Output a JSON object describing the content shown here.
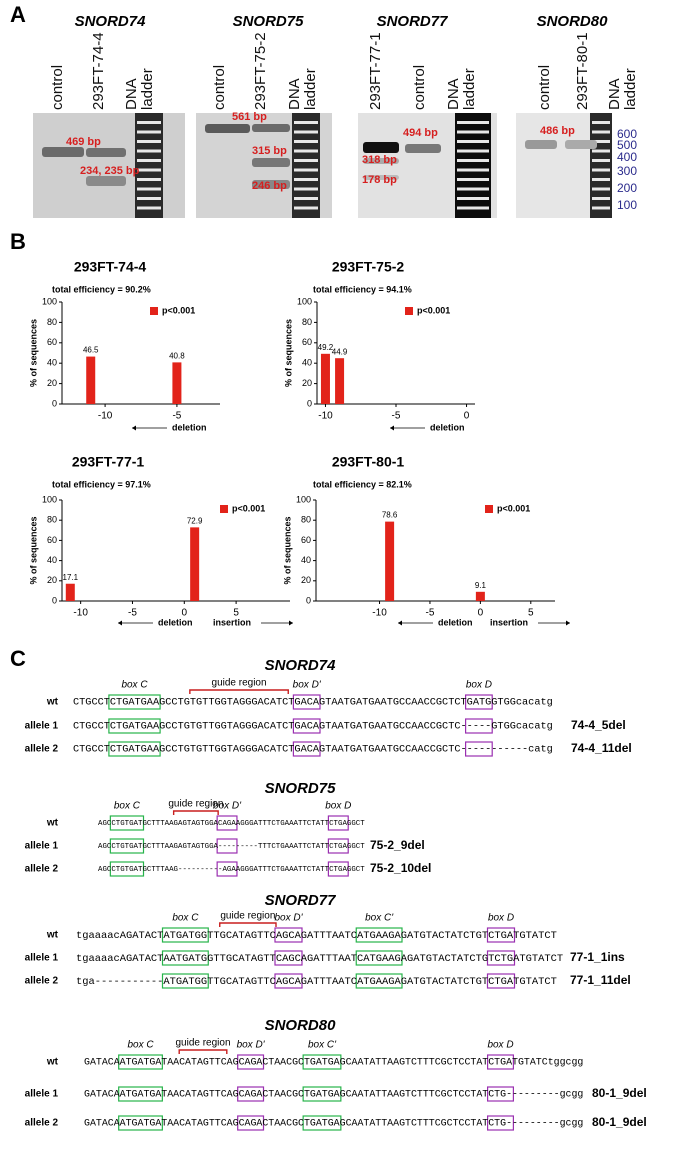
{
  "panel_a": {
    "label": "A",
    "gels": [
      {
        "title": "SNORD74",
        "lanes": [
          "control",
          "293FT-74-4",
          "DNA ladder"
        ],
        "bands": [
          "469 bp",
          "234, 235 bp"
        ]
      },
      {
        "title": "SNORD75",
        "lanes": [
          "control",
          "293FT-75-2",
          "DNA ladder"
        ],
        "bands": [
          "561 bp",
          "315 bp",
          "246 bp"
        ]
      },
      {
        "title": "SNORD77",
        "lanes": [
          "293FT-77-1",
          "control",
          "DNA ladder"
        ],
        "bands": [
          "494 bp",
          "318 bp",
          "178 bp"
        ]
      },
      {
        "title": "SNORD80",
        "lanes": [
          "control",
          "293FT-80-1",
          "DNA ladder"
        ],
        "bands": [
          "486 bp"
        ]
      }
    ],
    "ladder_labels": [
      "600",
      "500",
      "400",
      "300",
      "200",
      "100"
    ]
  },
  "panel_b": {
    "label": "B"
  },
  "chart_data": [
    {
      "type": "bar",
      "title": "293FT-74-4",
      "subtitle": "total efficiency = 90.2%",
      "ylabel": "% of sequences",
      "x": [
        -11,
        -5
      ],
      "series": [
        {
          "name": "p<0.001",
          "color": "#e2231a",
          "values": [
            46.5,
            40.8
          ]
        }
      ],
      "xlim": [
        -13,
        -2
      ],
      "xticks": [
        -10,
        -5
      ],
      "ylim": [
        0,
        100
      ],
      "yticks": [
        0,
        20,
        40,
        60,
        80,
        100
      ],
      "legend": "upper right",
      "annotations": [
        "deletion"
      ]
    },
    {
      "type": "bar",
      "title": "293FT-75-2",
      "subtitle": "total efficiency = 94.1%",
      "ylabel": "% of sequences",
      "x": [
        -10,
        -9
      ],
      "series": [
        {
          "name": "p<0.001",
          "color": "#e2231a",
          "values": [
            49.2,
            44.9
          ]
        }
      ],
      "xlim": [
        -10.6,
        0.6
      ],
      "xticks": [
        -10,
        -5,
        0
      ],
      "ylim": [
        0,
        100
      ],
      "yticks": [
        0,
        20,
        40,
        60,
        80,
        100
      ],
      "legend": "upper right",
      "annotations": [
        "deletion"
      ]
    },
    {
      "type": "bar",
      "title": "293FT-77-1",
      "subtitle": "total efficiency = 97.1%",
      "ylabel": "% of sequences",
      "x": [
        -11,
        1
      ],
      "series": [
        {
          "name": "p<0.001",
          "color": "#e2231a",
          "values": [
            17.1,
            72.9
          ]
        }
      ],
      "xlim": [
        -11.8,
        10.2
      ],
      "xticks": [
        -10,
        -5,
        0,
        5
      ],
      "ylim": [
        0,
        100
      ],
      "yticks": [
        0,
        20,
        40,
        60,
        80,
        100
      ],
      "legend": "upper right",
      "annotations": [
        "deletion",
        "insertion"
      ]
    },
    {
      "type": "bar",
      "title": "293FT-80-1",
      "subtitle": "total efficiency = 82.1%",
      "ylabel": "% of sequences",
      "x": [
        -9,
        0
      ],
      "series": [
        {
          "name": "p<0.001",
          "color": "#e2231a",
          "values": [
            78.6,
            9.1
          ]
        }
      ],
      "xlim": [
        -16.3,
        7.4
      ],
      "xticks": [
        -10,
        -5,
        0,
        5
      ],
      "ylim": [
        0,
        100
      ],
      "yticks": [
        0,
        20,
        40,
        60,
        80,
        100
      ],
      "legend": "upper right",
      "annotations": [
        "deletion",
        "insertion"
      ]
    }
  ],
  "panel_c": {
    "label": "C",
    "blocks": [
      {
        "title": "SNORD74",
        "labels": [
          "box C",
          "guide region",
          "box D'",
          "box D"
        ],
        "rows": [
          {
            "label": "wt",
            "sequence": "CTGCCTCTGATGAAGCCTGTGTTGGTAGGGACATCTGACAGTAATGATGAATGCCAACCGCTCTGATGGTGGcacatg"
          },
          {
            "label": "allele 1",
            "sequence": "CTGCCTCTGATGAAGCCTGTGTTGGTAGGGACATCTGACAGTAATGATGAATGCCAACCGCTC-----GTGGcacatg",
            "name": "74-4_5del"
          },
          {
            "label": "allele 2",
            "sequence": "CTGCCTCTGATGAAGCCTGTGTTGGTAGGGACATCTGACAGTAATGATGAATGCCAACCGCTC-----------catg",
            "name": "74-4_11del"
          }
        ]
      },
      {
        "title": "SNORD75",
        "labels": [
          "box C",
          "guide region",
          "box D'",
          "box D"
        ],
        "rows": [
          {
            "label": "wt",
            "sequence": "AGCCTGTGATGCTTTAAGAGTAGTGGACAGAAGGGATTTCTGAAATTCTATTCTGAGGCT"
          },
          {
            "label": "allele 1",
            "sequence": "AGCCTGTGATGCTTTAAGAGTAGTGGA---------TTTCTGAAATTCTATTCTGAGGCT",
            "name": "75-2_9del"
          },
          {
            "label": "allele 2",
            "sequence": "AGCCTGTGATGCTTTAAG----------AGAAGGGATTTCTGAAATTCTATTCTGAGGCT",
            "name": "75-2_10del"
          }
        ]
      },
      {
        "title": "SNORD77",
        "labels": [
          "box C",
          "guide region",
          "box D'",
          "box C'",
          "box D"
        ],
        "rows": [
          {
            "label": "wt",
            "sequence": "tgaaaacAGATACTATGATGGTTGCATAGTTCAGCAGATTTAATCATGAAGAGATGTACTATCTGTCTGATGTATCT"
          },
          {
            "label": "allele 1",
            "sequence": "tgaaaacAGATACTAATGATGGTTGCATAGTTCAGCAGATTTAATCATGAAGAGATGTACTATCTGTCTGATGTATCT",
            "name": "77-1_1ins"
          },
          {
            "label": "allele 2",
            "sequence": "tga-----------ATGATGGTTGCATAGTTCAGCAGATTTAATCATGAAGAGATGTACTATCTGTCTGATGTATCT",
            "name": "77-1_11del"
          }
        ]
      },
      {
        "title": "SNORD80",
        "labels": [
          "box C",
          "guide region",
          "box D'",
          "box C'",
          "box D"
        ],
        "rows": [
          {
            "label": "wt",
            "sequence": "GATACAATGATGATAACATAGTTCAGCAGACTAACGCTGATGAGCAATATTAAGTCTTTCGCTCCTATCTGATGTATCtggcgg"
          },
          {
            "label": "allele 1",
            "sequence": "GATACAATGATGATAACATAGTTCAGCAGACTAACGCTGATGAGCAATATTAAGTCTTTCGCTCCTATCTG---------gcgg",
            "name": "80-1_9del"
          },
          {
            "label": "allele 2",
            "sequence": "GATACAATGATGATAACATAGTTCAGCAGACTAACGCTGATGAGCAATATTAAGTCTTTCGCTCCTATCTG---------gcgg",
            "name": "80-1_9del"
          }
        ]
      }
    ]
  }
}
